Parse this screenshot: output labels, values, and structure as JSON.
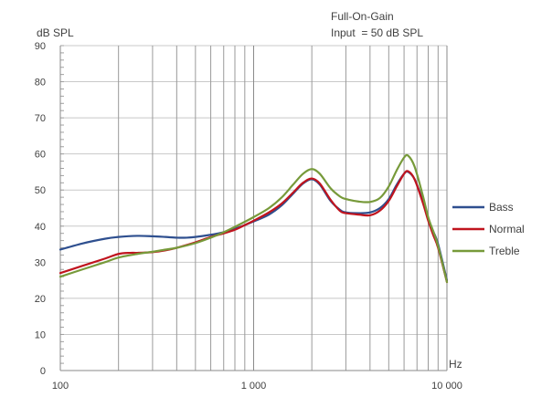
{
  "chart_data": {
    "type": "line",
    "title": "Full-On-Gain",
    "subtitle": "Input  = 50 dB SPL",
    "ylabel": "dB SPL",
    "xlabel": "Hz",
    "xscale": "log",
    "xlim": [
      100,
      10000
    ],
    "ylim": [
      0,
      90
    ],
    "yticks": [
      0,
      10,
      20,
      30,
      40,
      50,
      60,
      70,
      80,
      90
    ],
    "xticks": [
      {
        "value": 100,
        "label": "100"
      },
      {
        "value": 1000,
        "label": "1 000"
      },
      {
        "value": 10000,
        "label": "10 000"
      }
    ],
    "grid": true,
    "legend_position": "right",
    "series": [
      {
        "name": "Bass",
        "color": "#2e4f8f",
        "points": [
          [
            100,
            33.5
          ],
          [
            130,
            35.2
          ],
          [
            170,
            36.5
          ],
          [
            200,
            37.0
          ],
          [
            250,
            37.3
          ],
          [
            300,
            37.2
          ],
          [
            350,
            37.0
          ],
          [
            400,
            36.8
          ],
          [
            450,
            36.8
          ],
          [
            500,
            37.0
          ],
          [
            600,
            37.6
          ],
          [
            700,
            38.3
          ],
          [
            800,
            39.3
          ],
          [
            900,
            40.3
          ],
          [
            1000,
            41.3
          ],
          [
            1200,
            43.2
          ],
          [
            1400,
            45.8
          ],
          [
            1600,
            49.0
          ],
          [
            1800,
            51.8
          ],
          [
            2000,
            53.0
          ],
          [
            2200,
            51.5
          ],
          [
            2500,
            47.0
          ],
          [
            2800,
            44.5
          ],
          [
            3000,
            43.8
          ],
          [
            3500,
            43.6
          ],
          [
            4000,
            43.8
          ],
          [
            4500,
            45.0
          ],
          [
            5000,
            47.5
          ],
          [
            5500,
            51.5
          ],
          [
            6000,
            54.5
          ],
          [
            6300,
            55.0
          ],
          [
            6800,
            53.0
          ],
          [
            7500,
            47.0
          ],
          [
            8000,
            42.0
          ],
          [
            8500,
            38.5
          ],
          [
            9000,
            35.0
          ],
          [
            10000,
            25.0
          ]
        ]
      },
      {
        "name": "Normal",
        "color": "#c0141e",
        "points": [
          [
            100,
            27.0
          ],
          [
            130,
            29.0
          ],
          [
            170,
            31.0
          ],
          [
            200,
            32.3
          ],
          [
            230,
            32.6
          ],
          [
            250,
            32.6
          ],
          [
            300,
            32.8
          ],
          [
            350,
            33.3
          ],
          [
            400,
            34.0
          ],
          [
            500,
            35.5
          ],
          [
            600,
            37.0
          ],
          [
            700,
            38.0
          ],
          [
            800,
            39.0
          ],
          [
            900,
            40.3
          ],
          [
            1000,
            41.5
          ],
          [
            1200,
            43.8
          ],
          [
            1400,
            46.3
          ],
          [
            1600,
            49.3
          ],
          [
            1800,
            52.0
          ],
          [
            2000,
            53.2
          ],
          [
            2200,
            51.8
          ],
          [
            2500,
            47.3
          ],
          [
            2800,
            44.2
          ],
          [
            3000,
            43.6
          ],
          [
            3500,
            43.2
          ],
          [
            4000,
            43.0
          ],
          [
            4500,
            44.3
          ],
          [
            5000,
            47.0
          ],
          [
            5500,
            51.0
          ],
          [
            6000,
            54.5
          ],
          [
            6300,
            55.2
          ],
          [
            6800,
            53.0
          ],
          [
            7500,
            46.5
          ],
          [
            8000,
            41.5
          ],
          [
            8500,
            37.5
          ],
          [
            9000,
            34.0
          ],
          [
            10000,
            24.5
          ]
        ]
      },
      {
        "name": "Treble",
        "color": "#779a3a",
        "points": [
          [
            100,
            26.0
          ],
          [
            130,
            28.0
          ],
          [
            170,
            30.0
          ],
          [
            200,
            31.3
          ],
          [
            250,
            32.3
          ],
          [
            300,
            32.9
          ],
          [
            350,
            33.5
          ],
          [
            400,
            34.0
          ],
          [
            500,
            35.3
          ],
          [
            600,
            36.8
          ],
          [
            700,
            38.3
          ],
          [
            800,
            39.8
          ],
          [
            900,
            41.2
          ],
          [
            1000,
            42.5
          ],
          [
            1200,
            45.0
          ],
          [
            1400,
            48.0
          ],
          [
            1600,
            51.5
          ],
          [
            1800,
            54.5
          ],
          [
            2000,
            55.8
          ],
          [
            2200,
            54.5
          ],
          [
            2500,
            50.5
          ],
          [
            2800,
            48.2
          ],
          [
            3000,
            47.5
          ],
          [
            3500,
            46.8
          ],
          [
            4000,
            46.7
          ],
          [
            4500,
            47.8
          ],
          [
            5000,
            51.0
          ],
          [
            5500,
            55.5
          ],
          [
            6000,
            59.0
          ],
          [
            6300,
            59.5
          ],
          [
            6800,
            56.5
          ],
          [
            7500,
            48.5
          ],
          [
            8000,
            42.5
          ],
          [
            8500,
            38.5
          ],
          [
            9000,
            34.5
          ],
          [
            10000,
            24.5
          ]
        ]
      }
    ]
  }
}
